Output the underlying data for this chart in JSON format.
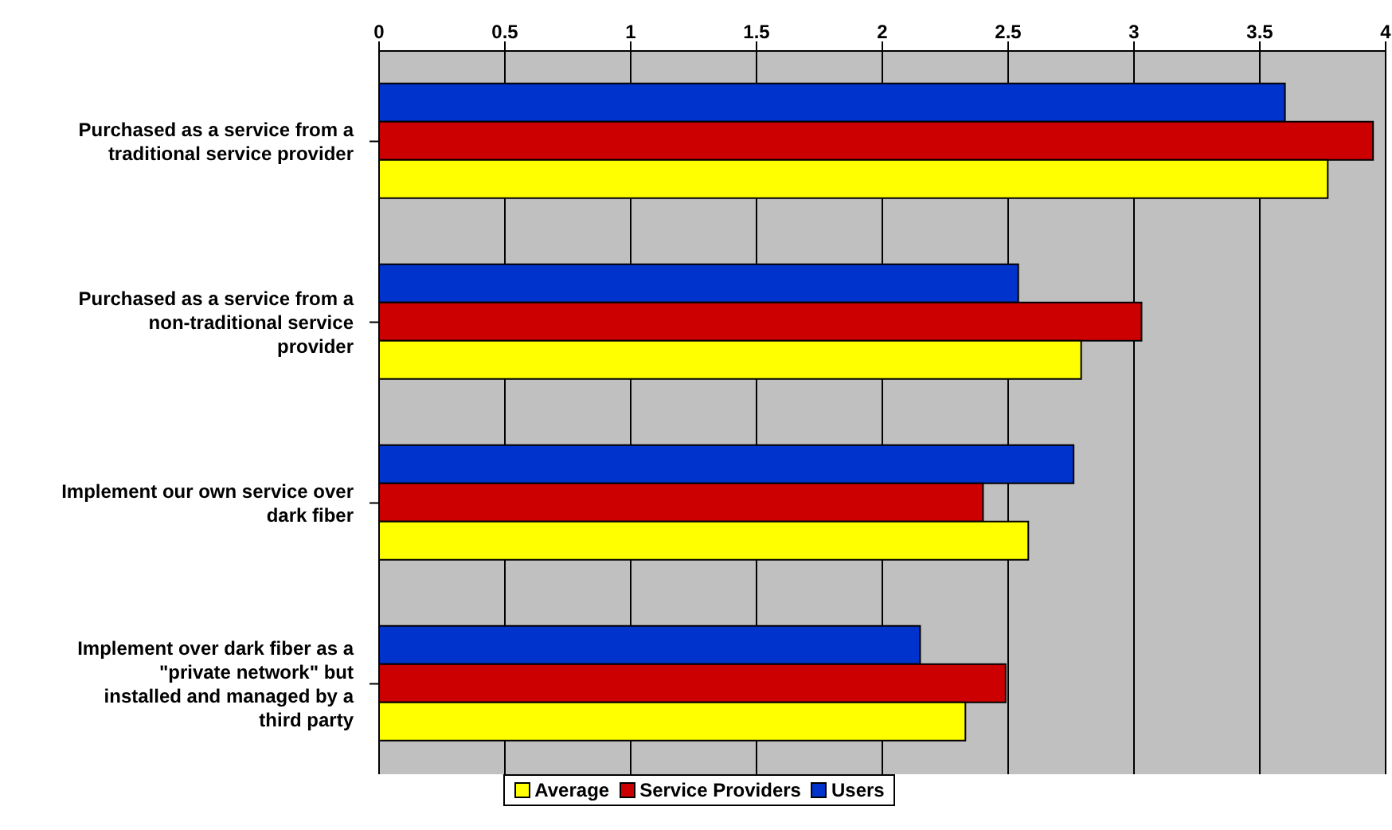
{
  "chart_data": {
    "type": "bar",
    "orientation": "horizontal",
    "categories": [
      "Purchased as a service from a traditional service provider",
      "Purchased as a service from a non-traditional service provider",
      "Implement our own service over dark fiber",
      "Implement over dark fiber as a \"private network\" but installed and managed by a third party"
    ],
    "series": [
      {
        "name": "Users",
        "color": "#0033cc",
        "values": [
          3.6,
          2.54,
          2.76,
          2.15
        ]
      },
      {
        "name": "Service Providers",
        "color": "#cc0000",
        "values": [
          3.95,
          3.03,
          2.4,
          2.49
        ]
      },
      {
        "name": "Average",
        "color": "#ffff00",
        "values": [
          3.77,
          2.79,
          2.58,
          2.33
        ]
      }
    ],
    "xlim": [
      0,
      4
    ],
    "xticks": [
      0,
      0.5,
      1,
      1.5,
      2,
      2.5,
      3,
      3.5,
      4
    ],
    "grid": "x",
    "legend": "bottom"
  }
}
